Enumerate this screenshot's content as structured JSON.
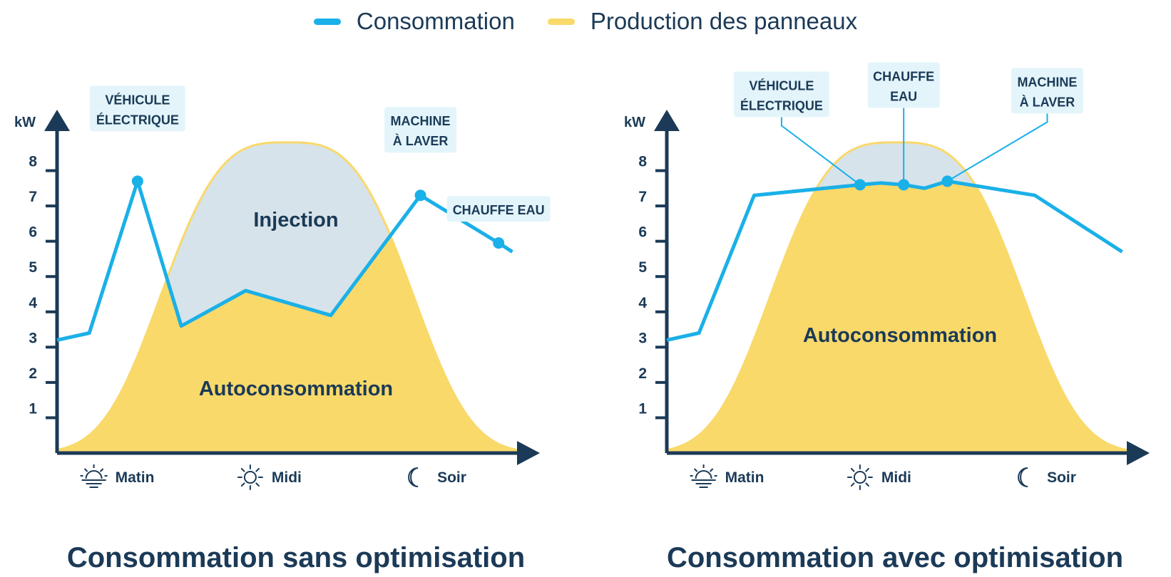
{
  "legend": {
    "consumption_label": "Consommation",
    "production_label": "Production des panneaux",
    "consumption_color": "#1ab0e8",
    "production_color": "#f9d96a"
  },
  "colors": {
    "axis": "#1b3a57",
    "injection_fill": "#d7e3ea",
    "label_box": "#e3f5fb"
  },
  "icons": [
    "sunrise-icon",
    "sun-icon",
    "moon-icon"
  ],
  "chart_data": [
    {
      "type": "area",
      "title": "Consommation sans optimisation",
      "ylabel": "kW",
      "ylim": [
        0,
        9
      ],
      "yticks": [
        1,
        2,
        3,
        4,
        5,
        6,
        7,
        8
      ],
      "x_labels": [
        "Matin",
        "Midi",
        "Soir"
      ],
      "region_labels": [
        "Injection",
        "Autoconsommation"
      ],
      "series": [
        {
          "name": "Consommation",
          "x": [
            0,
            0.07,
            0.175,
            0.27,
            0.41,
            0.595,
            0.79,
            0.96,
            0.99
          ],
          "y": [
            3.2,
            3.4,
            7.7,
            3.6,
            4.6,
            3.9,
            7.3,
            5.95,
            5.7
          ]
        },
        {
          "name": "Production des panneaux",
          "peak": 8.8,
          "peak_x": 0.5
        }
      ],
      "annotations": [
        {
          "text": [
            "VÉHICULE",
            "ÉLECTRIQUE"
          ],
          "x": 0.175,
          "y": 7.7
        },
        {
          "text": [
            "MACHINE",
            "À LAVER"
          ],
          "x": 0.79,
          "y": 7.3
        },
        {
          "text": [
            "CHAUFFE EAU"
          ],
          "x": 0.96,
          "y": 5.95
        }
      ]
    },
    {
      "type": "area",
      "title": "Consommation avec optimisation",
      "ylabel": "kW",
      "ylim": [
        0,
        9
      ],
      "yticks": [
        1,
        2,
        3,
        4,
        5,
        6,
        7,
        8
      ],
      "x_labels": [
        "Matin",
        "Midi",
        "Soir"
      ],
      "region_labels": [
        "Autoconsommation"
      ],
      "series": [
        {
          "name": "Consommation",
          "x": [
            0,
            0.07,
            0.19,
            0.42,
            0.465,
            0.515,
            0.56,
            0.61,
            0.8,
            0.99
          ],
          "y": [
            3.2,
            3.4,
            7.3,
            7.6,
            7.65,
            7.6,
            7.5,
            7.7,
            7.3,
            5.7
          ]
        },
        {
          "name": "Production des panneaux",
          "peak": 8.8,
          "peak_x": 0.5
        }
      ],
      "annotations": [
        {
          "text": [
            "VÉHICULE",
            "ÉLECTRIQUE"
          ],
          "x": 0.42,
          "y": 7.6
        },
        {
          "text": [
            "CHAUFFE",
            "EAU"
          ],
          "x": 0.515,
          "y": 7.6
        },
        {
          "text": [
            "MACHINE",
            "À LAVER"
          ],
          "x": 0.61,
          "y": 7.7
        }
      ]
    }
  ]
}
